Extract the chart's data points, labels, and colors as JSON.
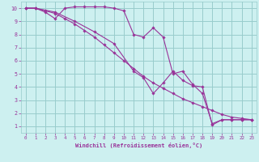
{
  "xlabel": "Windchill (Refroidissement éolien,°C)",
  "bg_color": "#cdf0f0",
  "grid_color": "#99cccc",
  "line_color": "#993399",
  "xlim": [
    -0.5,
    23.5
  ],
  "ylim": [
    0.5,
    10.5
  ],
  "yticks": [
    1,
    2,
    3,
    4,
    5,
    6,
    7,
    8,
    9,
    10
  ],
  "xticks": [
    0,
    1,
    2,
    3,
    4,
    5,
    6,
    7,
    8,
    9,
    10,
    11,
    12,
    13,
    14,
    15,
    16,
    17,
    18,
    19,
    20,
    21,
    22,
    23
  ],
  "series": [
    {
      "x": [
        0,
        1,
        2,
        3,
        4,
        5,
        6,
        7,
        8,
        9,
        10,
        11,
        12,
        13,
        14,
        15,
        16,
        17,
        18,
        19,
        20,
        21,
        22,
        23
      ],
      "y": [
        10,
        10,
        9.8,
        9.6,
        9.2,
        8.8,
        8.3,
        7.8,
        7.2,
        6.6,
        6.0,
        5.4,
        4.8,
        4.3,
        3.9,
        3.5,
        3.1,
        2.8,
        2.5,
        2.2,
        1.9,
        1.7,
        1.6,
        1.5
      ]
    },
    {
      "x": [
        0,
        1,
        2,
        3,
        4,
        5,
        6,
        7,
        8,
        9,
        10,
        11,
        12,
        13,
        14,
        15,
        16,
        17,
        18,
        19,
        20,
        21,
        22,
        23
      ],
      "y": [
        10,
        10,
        9.7,
        9.2,
        10.0,
        10.1,
        10.1,
        10.1,
        10.1,
        10.0,
        9.8,
        8.0,
        7.8,
        8.5,
        7.8,
        5.0,
        5.2,
        4.2,
        3.5,
        1.2,
        1.5,
        1.5,
        1.5,
        1.5
      ]
    },
    {
      "x": [
        0,
        1,
        3,
        5,
        7,
        9,
        11,
        12,
        13,
        14,
        15,
        16,
        17,
        18,
        19,
        20,
        21,
        22,
        23
      ],
      "y": [
        10,
        10,
        9.7,
        9.0,
        8.2,
        7.3,
        5.2,
        4.7,
        3.5,
        4.3,
        5.2,
        4.5,
        4.1,
        4.0,
        1.1,
        1.5,
        1.5,
        1.5,
        1.5
      ]
    }
  ]
}
